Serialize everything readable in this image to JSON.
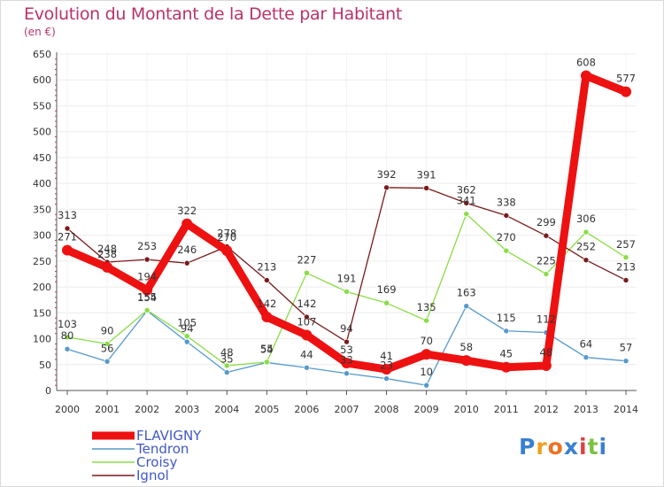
{
  "title": "Evolution du Montant de la Dette par Habitant",
  "subtitle": "(en €)",
  "logo": {
    "letters": [
      "P",
      "r",
      "o",
      "x",
      "i",
      "t",
      "i"
    ],
    "colors": [
      "#3a7fd0",
      "#f0a020",
      "#f07020",
      "#3a7fd0",
      "#e04040",
      "#7cc040",
      "#3a7fd0"
    ]
  },
  "chart_data": {
    "type": "line",
    "title": "Evolution du Montant de la Dette par Habitant",
    "ylabel": "(en €)",
    "ylim": [
      0,
      650
    ],
    "yticks": [
      0,
      50,
      100,
      150,
      200,
      250,
      300,
      350,
      400,
      450,
      500,
      550,
      600,
      650
    ],
    "grid": true,
    "legend_position": "bottom-left",
    "x": [
      "2000",
      "2001",
      "2002",
      "2003",
      "2004",
      "2005",
      "2006",
      "2007",
      "2008",
      "2009",
      "2010",
      "2011",
      "2012",
      "2013",
      "2014"
    ],
    "series": [
      {
        "name": "FLAVIGNY",
        "color": "#ee1111",
        "values": [
          271,
          238,
          194,
          322,
          270,
          142,
          107,
          53,
          41,
          70,
          58,
          45,
          48,
          608,
          577
        ],
        "width": 9,
        "marker": 6
      },
      {
        "name": "Tendron",
        "color": "#5599cc",
        "values": [
          80,
          56,
          154,
          94,
          35,
          54,
          44,
          33,
          23,
          10,
          163,
          115,
          112,
          64,
          57
        ],
        "width": 1.3,
        "marker": 3
      },
      {
        "name": "Croisy",
        "color": "#88dd44",
        "values": [
          103,
          90,
          155,
          105,
          48,
          55,
          227,
          191,
          169,
          135,
          341,
          270,
          225,
          306,
          257
        ],
        "width": 1.3,
        "marker": 3
      },
      {
        "name": "Ignol",
        "color": "#7a1a1a",
        "values": [
          313,
          248,
          253,
          246,
          278,
          213,
          142,
          94,
          392,
          391,
          362,
          338,
          299,
          252,
          213
        ],
        "width": 1.3,
        "marker": 3
      }
    ]
  }
}
